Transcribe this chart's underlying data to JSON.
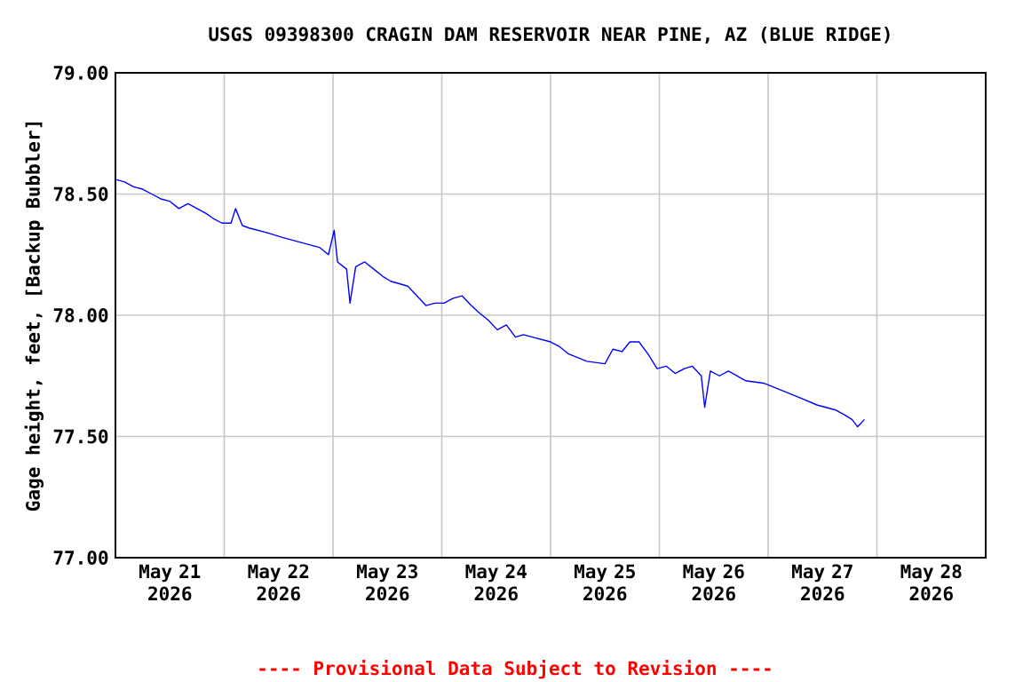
{
  "chart_data": {
    "type": "line",
    "title": "USGS 09398300 CRAGIN DAM RESERVOIR NEAR PINE, AZ (BLUE RIDGE)",
    "ylabel": "Gage height, feet, [Backup Bubbler]",
    "annotations": [
      "---- Provisional Data Subject to Revision ----"
    ],
    "x": [
      "2026-05-21T00:00",
      "2026-05-21T02:00",
      "2026-05-21T04:00",
      "2026-05-21T06:00",
      "2026-05-21T08:00",
      "2026-05-21T10:00",
      "2026-05-21T12:00",
      "2026-05-21T14:00",
      "2026-05-21T16:00",
      "2026-05-21T18:00",
      "2026-05-21T20:00",
      "2026-05-21T21:30",
      "2026-05-21T23:30",
      "2026-05-22T01:30",
      "2026-05-22T02:30",
      "2026-05-22T04:00",
      "2026-05-22T05:30",
      "2026-05-22T09:30",
      "2026-05-22T13:00",
      "2026-05-22T17:00",
      "2026-05-22T21:00",
      "2026-05-22T23:00",
      "2026-05-23T00:15",
      "2026-05-23T01:00",
      "2026-05-23T03:00",
      "2026-05-23T03:45",
      "2026-05-23T05:00",
      "2026-05-23T07:00",
      "2026-05-23T09:00",
      "2026-05-23T11:00",
      "2026-05-23T12:45",
      "2026-05-23T16:30",
      "2026-05-23T20:30",
      "2026-05-23T22:30",
      "2026-05-24T00:30",
      "2026-05-24T02:30",
      "2026-05-24T04:30",
      "2026-05-24T06:30",
      "2026-05-24T08:15",
      "2026-05-24T10:15",
      "2026-05-24T12:15",
      "2026-05-24T14:15",
      "2026-05-24T16:15",
      "2026-05-24T18:00",
      "2026-05-24T20:00",
      "2026-05-25T00:00",
      "2026-05-25T02:00",
      "2026-05-25T04:00",
      "2026-05-25T08:00",
      "2026-05-25T12:00",
      "2026-05-25T13:45",
      "2026-05-25T15:45",
      "2026-05-25T17:30",
      "2026-05-25T19:30",
      "2026-05-25T21:30",
      "2026-05-25T23:30",
      "2026-05-26T01:30",
      "2026-05-26T03:30",
      "2026-05-26T05:30",
      "2026-05-26T07:15",
      "2026-05-26T09:15",
      "2026-05-26T10:00",
      "2026-05-26T11:15",
      "2026-05-26T13:15",
      "2026-05-26T15:15",
      "2026-05-26T19:00",
      "2026-05-26T23:00",
      "2026-05-27T03:00",
      "2026-05-27T07:00",
      "2026-05-27T10:45",
      "2026-05-27T14:45",
      "2026-05-27T16:45",
      "2026-05-27T18:30",
      "2026-05-27T19:45",
      "2026-05-27T21:15"
    ],
    "series": [
      {
        "color": "#0000ff",
        "values": [
          78.56,
          78.55,
          78.53,
          78.52,
          78.5,
          78.48,
          78.47,
          78.44,
          78.46,
          78.44,
          78.42,
          78.4,
          78.38,
          78.38,
          78.44,
          78.37,
          78.36,
          78.34,
          78.32,
          78.3,
          78.28,
          78.25,
          78.35,
          78.22,
          78.19,
          78.05,
          78.2,
          78.22,
          78.19,
          78.16,
          78.14,
          78.12,
          78.04,
          78.05,
          78.05,
          78.07,
          78.08,
          78.04,
          78.01,
          77.98,
          77.94,
          77.96,
          77.91,
          77.92,
          77.91,
          77.89,
          77.87,
          77.84,
          77.81,
          77.8,
          77.86,
          77.85,
          77.89,
          77.89,
          77.84,
          77.78,
          77.79,
          77.76,
          77.78,
          77.79,
          77.75,
          77.62,
          77.77,
          77.75,
          77.77,
          77.73,
          77.72,
          77.69,
          77.66,
          77.63,
          77.61,
          77.59,
          77.57,
          77.54,
          77.57
        ]
      }
    ],
    "xlim": [
      "2026-05-21T00:00",
      "2026-05-29T00:00"
    ],
    "xticks": [
      {
        "value": "2026-05-21T12:00",
        "label": "May 21 2026"
      },
      {
        "value": "2026-05-22T12:00",
        "label": "May 22 2026"
      },
      {
        "value": "2026-05-23T12:00",
        "label": "May 23 2026"
      },
      {
        "value": "2026-05-24T12:00",
        "label": "May 24 2026"
      },
      {
        "value": "2026-05-25T12:00",
        "label": "May 25 2026"
      },
      {
        "value": "2026-05-26T12:00",
        "label": "May 26 2026"
      },
      {
        "value": "2026-05-27T12:00",
        "label": "May 27 2026"
      },
      {
        "value": "2026-05-28T12:00",
        "label": "May 28 2026"
      },
      {
        "value": "2026-05-22T00:00",
        "label": null
      },
      {
        "value": "2026-05-23T00:00",
        "label": null
      },
      {
        "value": "2026-05-24T00:00",
        "label": null
      },
      {
        "value": "2026-05-25T00:00",
        "label": null
      },
      {
        "value": "2026-05-26T00:00",
        "label": null
      },
      {
        "value": "2026-05-27T00:00",
        "label": null
      },
      {
        "value": "2026-05-28T00:00",
        "label": null
      }
    ],
    "ylim": [
      77,
      79
    ],
    "yticks": [
      {
        "value": 77,
        "label": "77.00"
      },
      {
        "value": 77.5,
        "label": "77.50"
      },
      {
        "value": 78,
        "label": "78.00"
      },
      {
        "value": 78.5,
        "label": "78.50"
      },
      {
        "value": 79,
        "label": "79.00"
      }
    ],
    "grid": true,
    "marker": "none",
    "line_style": "solid"
  }
}
